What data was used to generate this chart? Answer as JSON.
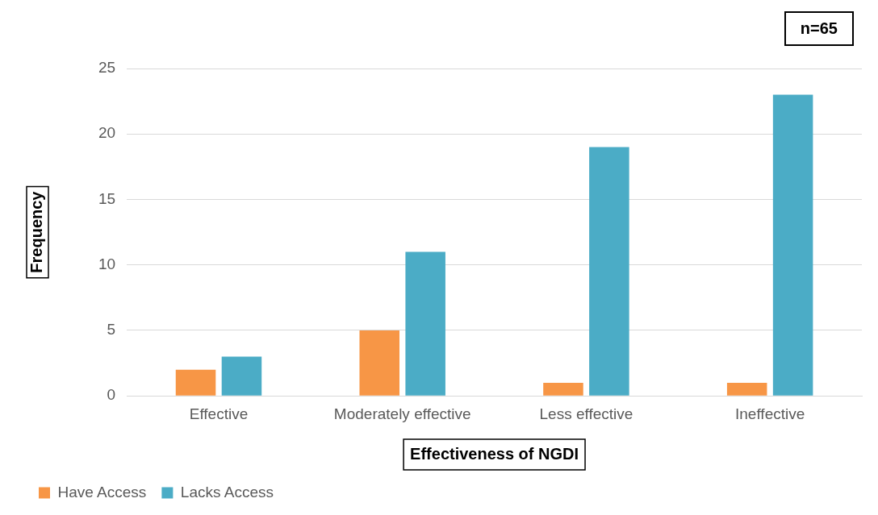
{
  "chart_data": {
    "type": "bar",
    "xlabel": "Effectiveness of NGDI",
    "ylabel": "Frequency",
    "categories": [
      "Effective",
      "Moderately effective",
      "Less effective",
      "Ineffective"
    ],
    "series": [
      {
        "name": "Have Access",
        "color": "#f79646",
        "values": [
          2,
          5,
          1,
          1
        ]
      },
      {
        "name": "Lacks Access",
        "color": "#4bacc6",
        "values": [
          3,
          11,
          19,
          23
        ]
      }
    ],
    "ylim": [
      0,
      25
    ],
    "yticks": [
      0,
      5,
      10,
      15,
      20,
      25
    ],
    "grid": "y",
    "legend": "bottom left",
    "annotations": [
      "n=65"
    ]
  }
}
